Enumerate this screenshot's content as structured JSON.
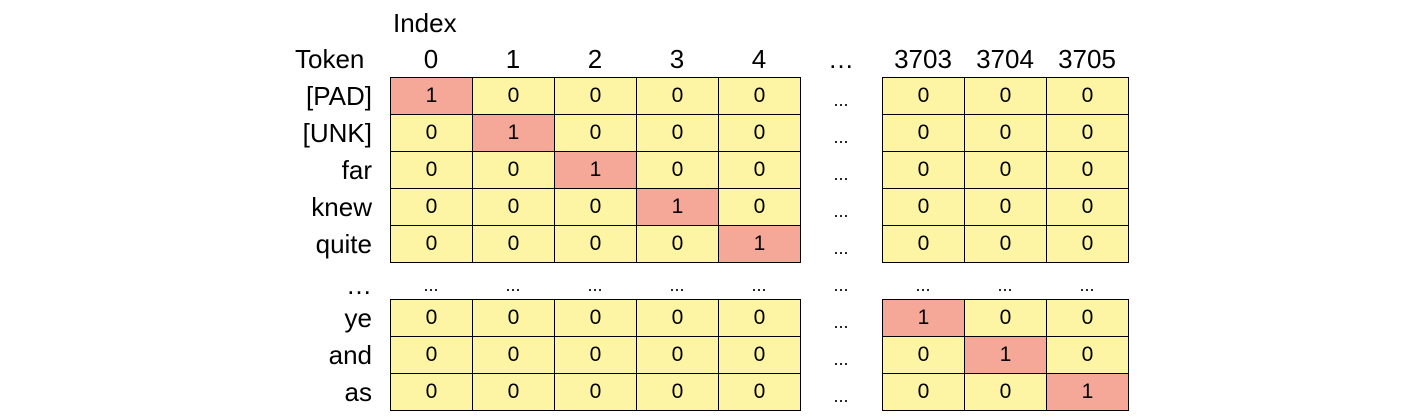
{
  "header": {
    "index_label": "Index",
    "token_label": "Token"
  },
  "columns": {
    "left": [
      "0",
      "1",
      "2",
      "3",
      "4"
    ],
    "gap": "…",
    "right": [
      "3703",
      "3704",
      "3705"
    ]
  },
  "rows_top": [
    {
      "token": "[PAD]",
      "left": [
        "1",
        "0",
        "0",
        "0",
        "0"
      ],
      "gap": "...",
      "right": [
        "0",
        "0",
        "0"
      ]
    },
    {
      "token": "[UNK]",
      "left": [
        "0",
        "1",
        "0",
        "0",
        "0"
      ],
      "gap": "...",
      "right": [
        "0",
        "0",
        "0"
      ]
    },
    {
      "token": "far",
      "left": [
        "0",
        "0",
        "1",
        "0",
        "0"
      ],
      "gap": "...",
      "right": [
        "0",
        "0",
        "0"
      ]
    },
    {
      "token": "knew",
      "left": [
        "0",
        "0",
        "0",
        "1",
        "0"
      ],
      "gap": "...",
      "right": [
        "0",
        "0",
        "0"
      ]
    },
    {
      "token": "quite",
      "left": [
        "0",
        "0",
        "0",
        "0",
        "1"
      ],
      "gap": "...",
      "right": [
        "0",
        "0",
        "0"
      ]
    }
  ],
  "ellipsis_row": {
    "token": "…",
    "left": [
      "...",
      "...",
      "...",
      "...",
      "..."
    ],
    "gap": "...",
    "right": [
      "...",
      "...",
      "..."
    ]
  },
  "rows_bottom": [
    {
      "token": "ye",
      "left": [
        "0",
        "0",
        "0",
        "0",
        "0"
      ],
      "gap": "...",
      "right": [
        "1",
        "0",
        "0"
      ]
    },
    {
      "token": "and",
      "left": [
        "0",
        "0",
        "0",
        "0",
        "0"
      ],
      "gap": "...",
      "right": [
        "0",
        "1",
        "0"
      ]
    },
    {
      "token": "as",
      "left": [
        "0",
        "0",
        "0",
        "0",
        "0"
      ],
      "gap": "...",
      "right": [
        "0",
        "0",
        "1"
      ]
    }
  ],
  "colors": {
    "zero_cell": "#fdf5a3",
    "one_cell": "#f6a898",
    "border": "#000000"
  }
}
